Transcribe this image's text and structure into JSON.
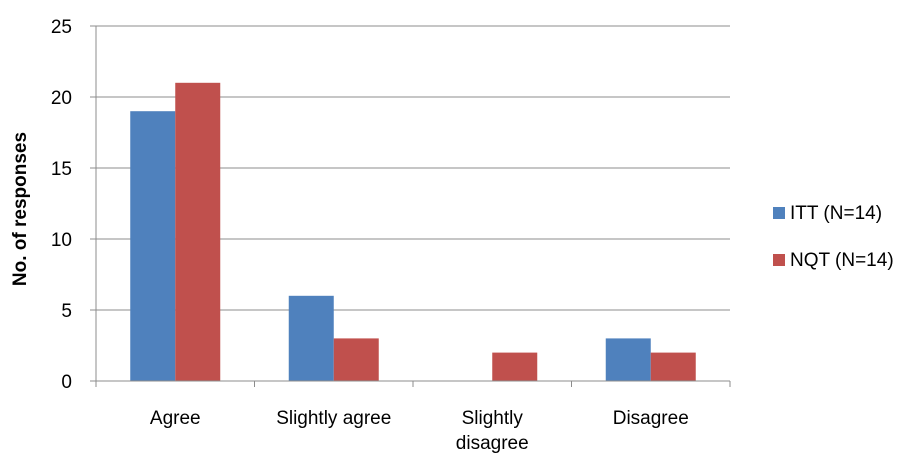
{
  "chart_data": {
    "type": "bar",
    "categories": [
      "Agree",
      "Slightly agree",
      "Slightly disagree",
      "Disagree"
    ],
    "category_lines": [
      [
        "Agree"
      ],
      [
        "Slightly agree"
      ],
      [
        "Slightly",
        "disagree"
      ],
      [
        "Disagree"
      ]
    ],
    "series": [
      {
        "name": "ITT (N=14)",
        "values": [
          19,
          6,
          0,
          3
        ],
        "color": "#4F81BD"
      },
      {
        "name": "NQT (N=14)",
        "values": [
          21,
          3,
          2,
          2
        ],
        "color": "#C0504D"
      }
    ],
    "title": "",
    "xlabel": "",
    "ylabel": "No. of responses",
    "ylim": [
      0,
      25
    ],
    "yticks": [
      0,
      5,
      10,
      15,
      20,
      25
    ],
    "grid": true,
    "legend": "right"
  }
}
